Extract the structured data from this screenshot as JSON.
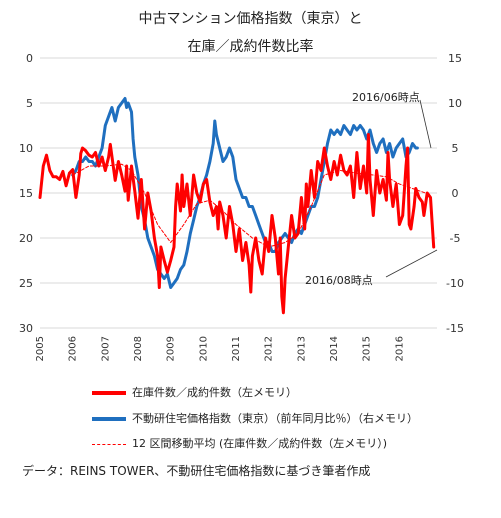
{
  "title_line1": "中古マンション価格指数（東京）と",
  "title_line2": "在庫／成約件数比率",
  "source": "データ：REINS TOWER、不動研住宅価格指数に基づき筆者作成",
  "annotations": {
    "top": "2016/06時点",
    "bottom": "2016/08時点"
  },
  "legend": [
    {
      "label": "在庫件数／成約件数（左メモリ）"
    },
    {
      "label": "不動研住宅価格指数（東京）（前年同月比％）（右メモリ）"
    },
    {
      "label": "12 区間移動平均 (在庫件数／成約件数（左メモリ）)"
    }
  ],
  "colors": {
    "ratio": "#ff0000",
    "price_index": "#1f6fbf",
    "moving_average": "#ff0000",
    "gridline": "#d9d9d9"
  },
  "chart_data": {
    "type": "line",
    "x_ticks": [
      "2005",
      "2006",
      "2007",
      "2008",
      "2009",
      "2010",
      "2011",
      "2012",
      "2013",
      "2014",
      "2015",
      "2016"
    ],
    "left_axis": {
      "ticks": [
        "0",
        "5",
        "10",
        "15",
        "20",
        "25",
        "30"
      ],
      "range": [
        0,
        30
      ],
      "inverted": true
    },
    "right_axis": {
      "ticks": [
        "15",
        "10",
        "5",
        "0",
        "-5",
        "-10",
        "-15"
      ],
      "range": [
        -15,
        15
      ]
    },
    "series": [
      {
        "name": "在庫件数／成約件数（左メモリ）",
        "axis": "left",
        "style": "solid",
        "points": [
          [
            2005.0,
            15.5
          ],
          [
            2005.1,
            12.0
          ],
          [
            2005.2,
            10.8
          ],
          [
            2005.3,
            12.5
          ],
          [
            2005.4,
            13.2
          ],
          [
            2005.5,
            13.2
          ],
          [
            2005.6,
            13.5
          ],
          [
            2005.7,
            12.6
          ],
          [
            2005.8,
            14.2
          ],
          [
            2005.9,
            12.8
          ],
          [
            2006.0,
            12.4
          ],
          [
            2006.1,
            15.5
          ],
          [
            2006.2,
            13.0
          ],
          [
            2006.25,
            10.6
          ],
          [
            2006.3,
            10.0
          ],
          [
            2006.4,
            10.3
          ],
          [
            2006.5,
            10.8
          ],
          [
            2006.6,
            11.0
          ],
          [
            2006.7,
            10.5
          ],
          [
            2006.8,
            12.0
          ],
          [
            2006.9,
            11.0
          ],
          [
            2007.0,
            12.5
          ],
          [
            2007.1,
            11.0
          ],
          [
            2007.15,
            9.6
          ],
          [
            2007.3,
            13.6
          ],
          [
            2007.4,
            11.5
          ],
          [
            2007.5,
            13.0
          ],
          [
            2007.6,
            14.8
          ],
          [
            2007.65,
            12.0
          ],
          [
            2007.7,
            15.8
          ],
          [
            2007.8,
            12.0
          ],
          [
            2007.9,
            14.8
          ],
          [
            2008.0,
            17.8
          ],
          [
            2008.1,
            13.5
          ],
          [
            2008.2,
            19.0
          ],
          [
            2008.3,
            15.0
          ],
          [
            2008.4,
            17.0
          ],
          [
            2008.5,
            20.0
          ],
          [
            2008.6,
            22.0
          ],
          [
            2008.65,
            25.5
          ],
          [
            2008.7,
            21.0
          ],
          [
            2008.8,
            22.5
          ],
          [
            2008.9,
            23.8
          ],
          [
            2009.0,
            22.5
          ],
          [
            2009.1,
            21.0
          ],
          [
            2009.15,
            16.5
          ],
          [
            2009.2,
            14.0
          ],
          [
            2009.3,
            17.0
          ],
          [
            2009.35,
            13.0
          ],
          [
            2009.4,
            16.5
          ],
          [
            2009.5,
            14.0
          ],
          [
            2009.6,
            17.5
          ],
          [
            2009.7,
            13.0
          ],
          [
            2009.8,
            15.0
          ],
          [
            2009.9,
            16.0
          ],
          [
            2010.0,
            14.0
          ],
          [
            2010.1,
            13.5
          ],
          [
            2010.2,
            16.0
          ],
          [
            2010.3,
            17.5
          ],
          [
            2010.4,
            16.5
          ],
          [
            2010.45,
            19.0
          ],
          [
            2010.5,
            16.0
          ],
          [
            2010.6,
            17.5
          ],
          [
            2010.7,
            20.0
          ],
          [
            2010.8,
            16.5
          ],
          [
            2010.9,
            18.5
          ],
          [
            2011.0,
            21.5
          ],
          [
            2011.1,
            19.0
          ],
          [
            2011.2,
            22.5
          ],
          [
            2011.3,
            20.5
          ],
          [
            2011.4,
            23.0
          ],
          [
            2011.45,
            26.0
          ],
          [
            2011.5,
            22.0
          ],
          [
            2011.6,
            20.0
          ],
          [
            2011.7,
            22.5
          ],
          [
            2011.8,
            24.0
          ],
          [
            2011.9,
            20.0
          ],
          [
            2012.0,
            21.5
          ],
          [
            2012.1,
            17.5
          ],
          [
            2012.2,
            20.0
          ],
          [
            2012.3,
            24.0
          ],
          [
            2012.35,
            20.0
          ],
          [
            2012.4,
            26.5
          ],
          [
            2012.45,
            28.3
          ],
          [
            2012.5,
            24.5
          ],
          [
            2012.6,
            21.0
          ],
          [
            2012.7,
            17.5
          ],
          [
            2012.8,
            20.0
          ],
          [
            2012.9,
            19.5
          ],
          [
            2013.0,
            15.5
          ],
          [
            2013.1,
            19.0
          ],
          [
            2013.15,
            14.0
          ],
          [
            2013.2,
            16.5
          ],
          [
            2013.3,
            12.5
          ],
          [
            2013.4,
            15.5
          ],
          [
            2013.5,
            11.5
          ],
          [
            2013.6,
            12.5
          ],
          [
            2013.7,
            10.0
          ],
          [
            2013.8,
            12.0
          ],
          [
            2013.9,
            13.5
          ],
          [
            2014.0,
            11.5
          ],
          [
            2014.1,
            13.0
          ],
          [
            2014.2,
            10.8
          ],
          [
            2014.3,
            12.5
          ],
          [
            2014.4,
            13.0
          ],
          [
            2014.5,
            12.0
          ],
          [
            2014.6,
            15.5
          ],
          [
            2014.7,
            10.5
          ],
          [
            2014.8,
            14.5
          ],
          [
            2014.9,
            12.0
          ],
          [
            2015.0,
            15.0
          ],
          [
            2015.05,
            8.5
          ],
          [
            2015.1,
            13.5
          ],
          [
            2015.2,
            17.5
          ],
          [
            2015.3,
            12.5
          ],
          [
            2015.4,
            15.0
          ],
          [
            2015.5,
            13.5
          ],
          [
            2015.6,
            15.8
          ],
          [
            2015.65,
            10.5
          ],
          [
            2015.7,
            13.5
          ],
          [
            2015.8,
            16.5
          ],
          [
            2015.9,
            14.0
          ],
          [
            2016.0,
            18.5
          ],
          [
            2016.1,
            17.5
          ],
          [
            2016.2,
            12.0
          ],
          [
            2016.25,
            10.0
          ],
          [
            2016.3,
            18.5
          ],
          [
            2016.35,
            19.0
          ],
          [
            2016.45,
            16.5
          ],
          [
            2016.5,
            14.5
          ],
          [
            2016.6,
            15.5
          ],
          [
            2016.7,
            16.0
          ],
          [
            2016.75,
            17.5
          ],
          [
            2016.85,
            15.0
          ],
          [
            2016.95,
            15.5
          ],
          [
            2017.05,
            21.0
          ]
        ]
      },
      {
        "name": "不動研住宅価格指数（東京）（前年同月比％）（右メモリ）",
        "axis": "right",
        "style": "solid",
        "points": [
          [
            2006.0,
            2.0
          ],
          [
            2006.1,
            2.5
          ],
          [
            2006.2,
            3.5
          ],
          [
            2006.3,
            3.5
          ],
          [
            2006.4,
            4.0
          ],
          [
            2006.5,
            3.5
          ],
          [
            2006.6,
            3.5
          ],
          [
            2006.7,
            3.0
          ],
          [
            2006.8,
            4.0
          ],
          [
            2006.9,
            5.0
          ],
          [
            2007.0,
            7.5
          ],
          [
            2007.1,
            8.5
          ],
          [
            2007.2,
            9.5
          ],
          [
            2007.3,
            8.0
          ],
          [
            2007.4,
            9.5
          ],
          [
            2007.5,
            10.0
          ],
          [
            2007.6,
            10.5
          ],
          [
            2007.65,
            9.5
          ],
          [
            2007.7,
            10.0
          ],
          [
            2007.8,
            9.0
          ],
          [
            2007.85,
            6.0
          ],
          [
            2007.9,
            4.0
          ],
          [
            2008.0,
            2.0
          ],
          [
            2008.1,
            -1.5
          ],
          [
            2008.2,
            -3.0
          ],
          [
            2008.3,
            -5.0
          ],
          [
            2008.4,
            -6.0
          ],
          [
            2008.5,
            -7.0
          ],
          [
            2008.6,
            -8.5
          ],
          [
            2008.7,
            -9.0
          ],
          [
            2008.8,
            -9.5
          ],
          [
            2008.9,
            -9.0
          ],
          [
            2009.0,
            -10.5
          ],
          [
            2009.1,
            -10.0
          ],
          [
            2009.2,
            -9.5
          ],
          [
            2009.3,
            -8.5
          ],
          [
            2009.4,
            -8.0
          ],
          [
            2009.5,
            -6.5
          ],
          [
            2009.6,
            -4.5
          ],
          [
            2009.7,
            -3.0
          ],
          [
            2009.8,
            -1.5
          ],
          [
            2009.9,
            -0.5
          ],
          [
            2010.0,
            1.0
          ],
          [
            2010.1,
            2.0
          ],
          [
            2010.2,
            3.5
          ],
          [
            2010.3,
            5.5
          ],
          [
            2010.35,
            8.0
          ],
          [
            2010.4,
            6.5
          ],
          [
            2010.5,
            5.0
          ],
          [
            2010.6,
            3.5
          ],
          [
            2010.7,
            4.0
          ],
          [
            2010.8,
            5.0
          ],
          [
            2010.9,
            4.0
          ],
          [
            2011.0,
            1.5
          ],
          [
            2011.1,
            0.5
          ],
          [
            2011.2,
            -0.5
          ],
          [
            2011.3,
            -0.5
          ],
          [
            2011.4,
            -1.5
          ],
          [
            2011.5,
            -1.5
          ],
          [
            2011.6,
            -2.5
          ],
          [
            2011.7,
            -3.5
          ],
          [
            2011.8,
            -4.5
          ],
          [
            2011.9,
            -5.5
          ],
          [
            2012.0,
            -5.5
          ],
          [
            2012.1,
            -6.5
          ],
          [
            2012.2,
            -6.5
          ],
          [
            2012.3,
            -5.5
          ],
          [
            2012.4,
            -5.0
          ],
          [
            2012.5,
            -4.5
          ],
          [
            2012.6,
            -5.0
          ],
          [
            2012.7,
            -5.5
          ],
          [
            2012.8,
            -4.5
          ],
          [
            2012.9,
            -4.0
          ],
          [
            2013.0,
            -4.5
          ],
          [
            2013.1,
            -3.5
          ],
          [
            2013.2,
            -2.5
          ],
          [
            2013.3,
            -1.5
          ],
          [
            2013.4,
            -1.5
          ],
          [
            2013.5,
            -0.5
          ],
          [
            2013.6,
            1.5
          ],
          [
            2013.7,
            3.5
          ],
          [
            2013.8,
            5.5
          ],
          [
            2013.9,
            7.0
          ],
          [
            2014.0,
            6.5
          ],
          [
            2014.1,
            7.0
          ],
          [
            2014.2,
            6.5
          ],
          [
            2014.3,
            7.5
          ],
          [
            2014.4,
            7.0
          ],
          [
            2014.5,
            6.5
          ],
          [
            2014.6,
            7.5
          ],
          [
            2014.7,
            7.0
          ],
          [
            2014.8,
            7.5
          ],
          [
            2014.9,
            7.0
          ],
          [
            2015.0,
            6.0
          ],
          [
            2015.1,
            7.0
          ],
          [
            2015.2,
            5.5
          ],
          [
            2015.3,
            4.5
          ],
          [
            2015.4,
            5.5
          ],
          [
            2015.5,
            6.0
          ],
          [
            2015.6,
            4.5
          ],
          [
            2015.7,
            5.5
          ],
          [
            2015.8,
            4.0
          ],
          [
            2015.9,
            5.0
          ],
          [
            2016.0,
            5.5
          ],
          [
            2016.1,
            6.0
          ],
          [
            2016.2,
            4.0
          ],
          [
            2016.3,
            4.5
          ],
          [
            2016.4,
            5.5
          ],
          [
            2016.5,
            5.0
          ],
          [
            2016.55,
            5.0
          ]
        ]
      },
      {
        "name": "12 区間移動平均 (在庫件数／成約件数（左メモリ）)",
        "axis": "left",
        "style": "dashed",
        "points": [
          [
            2006.0,
            13.0
          ],
          [
            2006.5,
            12.0
          ],
          [
            2007.0,
            12.0
          ],
          [
            2007.5,
            11.8
          ],
          [
            2007.8,
            12.5
          ],
          [
            2008.2,
            15.0
          ],
          [
            2008.6,
            18.5
          ],
          [
            2009.0,
            20.5
          ],
          [
            2009.4,
            18.5
          ],
          [
            2009.8,
            16.2
          ],
          [
            2010.2,
            15.8
          ],
          [
            2010.6,
            17.0
          ],
          [
            2011.0,
            18.5
          ],
          [
            2011.5,
            20.0
          ],
          [
            2012.0,
            21.0
          ],
          [
            2012.5,
            20.5
          ],
          [
            2012.9,
            19.5
          ],
          [
            2013.3,
            16.5
          ],
          [
            2013.7,
            13.0
          ],
          [
            2014.2,
            12.5
          ],
          [
            2014.7,
            12.8
          ],
          [
            2015.2,
            13.0
          ],
          [
            2015.6,
            13.2
          ],
          [
            2016.0,
            14.0
          ],
          [
            2016.4,
            14.5
          ],
          [
            2016.8,
            15.0
          ]
        ]
      }
    ]
  }
}
